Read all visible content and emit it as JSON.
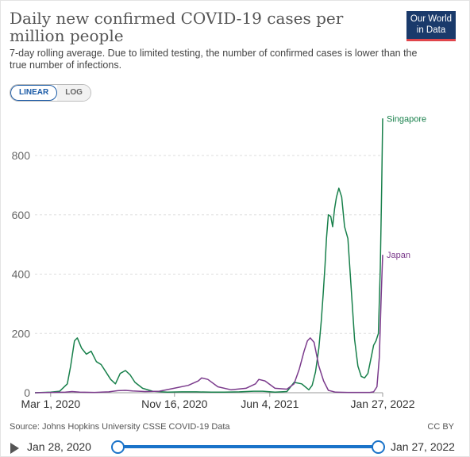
{
  "header": {
    "title": "Daily new confirmed COVID-19 cases per million people",
    "subtitle": "7-day rolling average. Due to limited testing, the number of confirmed cases is lower than the true number of infections.",
    "logo_line1": "Our World",
    "logo_line2": "in Data"
  },
  "controls": {
    "linear_label": "LINEAR",
    "log_label": "LOG",
    "active": "linear"
  },
  "footer": {
    "source": "Source: Johns Hopkins University CSSE COVID-19 Data",
    "license": "CC BY"
  },
  "timeline": {
    "start_label": "Jan 28, 2020",
    "end_label": "Jan 27, 2022"
  },
  "colors": {
    "singapore": "#18804b",
    "japan": "#7b3b8c",
    "accent": "#1a73c9"
  },
  "chart_data": {
    "type": "line",
    "title": "Daily new confirmed COVID-19 cases per million people",
    "xlabel": "",
    "ylabel": "",
    "x_start": "2020-01-28",
    "x_end": "2022-01-27",
    "xlim": [
      "2020-01-28",
      "2022-01-27"
    ],
    "ylim": [
      0,
      950
    ],
    "x_ticks": [
      "Mar 1, 2020",
      "Nov 16, 2020",
      "Jun 4, 2021",
      "Jan 27, 2022"
    ],
    "y_ticks": [
      0,
      200,
      400,
      600,
      800
    ],
    "grid": "horizontal-dashed",
    "legend": "inline-labels-right",
    "series": [
      {
        "name": "Singapore",
        "x": [
          "2020-01-28",
          "2020-03-01",
          "2020-03-20",
          "2020-04-05",
          "2020-04-12",
          "2020-04-20",
          "2020-04-26",
          "2020-05-05",
          "2020-05-15",
          "2020-05-25",
          "2020-06-05",
          "2020-06-15",
          "2020-06-25",
          "2020-07-05",
          "2020-07-15",
          "2020-07-25",
          "2020-08-05",
          "2020-08-15",
          "2020-08-25",
          "2020-09-10",
          "2020-10-01",
          "2020-11-01",
          "2020-12-01",
          "2021-01-01",
          "2021-02-01",
          "2021-03-01",
          "2021-04-01",
          "2021-05-01",
          "2021-05-20",
          "2021-06-15",
          "2021-07-10",
          "2021-07-25",
          "2021-08-10",
          "2021-08-25",
          "2021-09-01",
          "2021-09-08",
          "2021-09-15",
          "2021-09-20",
          "2021-09-24",
          "2021-09-28",
          "2021-10-01",
          "2021-10-05",
          "2021-10-10",
          "2021-10-14",
          "2021-10-18",
          "2021-10-22",
          "2021-10-27",
          "2021-11-02",
          "2021-11-08",
          "2021-11-15",
          "2021-11-22",
          "2021-11-29",
          "2021-12-06",
          "2021-12-13",
          "2021-12-20",
          "2021-12-27",
          "2022-01-03",
          "2022-01-08",
          "2022-01-13",
          "2022-01-18",
          "2022-01-22",
          "2022-01-25",
          "2022-01-27"
        ],
        "y": [
          0,
          2,
          5,
          30,
          90,
          175,
          185,
          150,
          130,
          140,
          105,
          95,
          70,
          45,
          30,
          65,
          75,
          60,
          35,
          15,
          5,
          2,
          3,
          3,
          2,
          2,
          3,
          5,
          5,
          2,
          4,
          35,
          30,
          10,
          25,
          70,
          150,
          240,
          330,
          430,
          520,
          600,
          595,
          560,
          620,
          660,
          690,
          660,
          560,
          520,
          350,
          180,
          90,
          55,
          50,
          65,
          120,
          160,
          175,
          200,
          420,
          700,
          925
        ]
      },
      {
        "name": "Japan",
        "x": [
          "2020-01-28",
          "2020-03-01",
          "2020-04-01",
          "2020-04-15",
          "2020-05-01",
          "2020-06-01",
          "2020-07-01",
          "2020-07-20",
          "2020-08-05",
          "2020-08-20",
          "2020-09-15",
          "2020-10-15",
          "2020-11-15",
          "2020-12-15",
          "2021-01-05",
          "2021-01-12",
          "2021-01-25",
          "2021-02-15",
          "2021-03-15",
          "2021-04-15",
          "2021-05-05",
          "2021-05-12",
          "2021-05-25",
          "2021-06-15",
          "2021-07-10",
          "2021-07-25",
          "2021-08-05",
          "2021-08-15",
          "2021-08-22",
          "2021-08-28",
          "2021-09-05",
          "2021-09-15",
          "2021-09-25",
          "2021-10-05",
          "2021-10-20",
          "2021-11-15",
          "2021-12-15",
          "2021-12-31",
          "2022-01-08",
          "2022-01-15",
          "2022-01-20",
          "2022-01-24",
          "2022-01-27"
        ],
        "y": [
          0,
          1,
          2,
          4,
          2,
          1,
          3,
          7,
          8,
          6,
          4,
          5,
          15,
          25,
          40,
          50,
          45,
          20,
          10,
          15,
          30,
          45,
          40,
          15,
          12,
          30,
          80,
          140,
          175,
          185,
          170,
          90,
          40,
          8,
          2,
          1,
          1,
          1,
          3,
          20,
          120,
          330,
          465
        ]
      }
    ]
  }
}
